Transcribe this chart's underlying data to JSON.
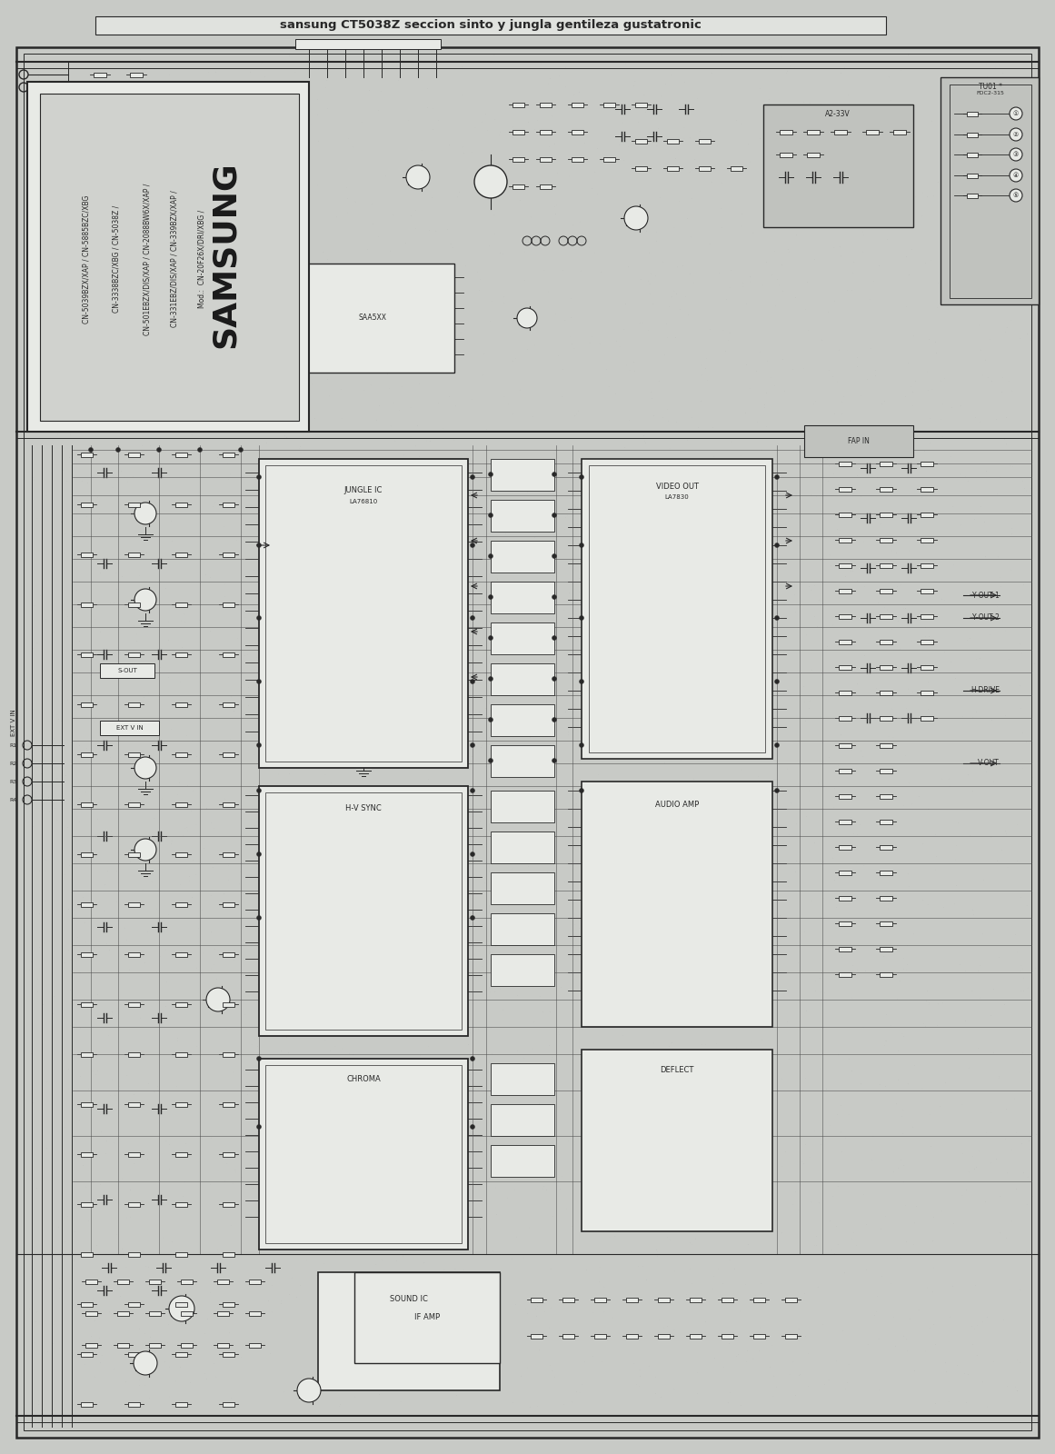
{
  "title": "sansung CT5038Z seccion sinto y jungla gentileza gustatronic",
  "brand": "SAMSUNG",
  "figsize": [
    11.61,
    16.0
  ],
  "dpi": 100,
  "bg_color": "#b8bab8",
  "paper_color": "#c8cac6",
  "line_color": "#282828",
  "dark_line": "#181818",
  "light_line": "#484848",
  "box_fill": "#c0c2be",
  "white_fill": "#e8eae6",
  "label_box_fill": "#d0d2ce",
  "title_bar_fill": "#e0e2de",
  "model_lines": [
    "Mod.:  CN-20F26X/DRI/XBG /",
    "CN-331EBZ/DIS/XAP / CN-339BZX/XAP /",
    "CN-501EBZX/DIS/XAP / CN-2088BW6X/XAP /",
    "CN-3338BZC/XBG / CN-5038Z /",
    "CN-5039BZX/XAP / CN-5885BZC/XBG"
  ],
  "xlim": [
    0,
    1161
  ],
  "ylim": [
    0,
    1600
  ]
}
